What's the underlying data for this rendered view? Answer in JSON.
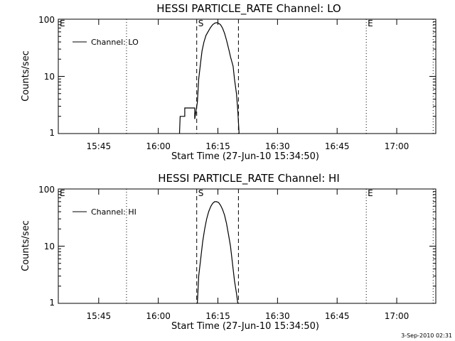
{
  "footer": {
    "timestamp": "3-Sep-2010 02:31"
  },
  "chart_data": [
    {
      "type": "line",
      "title": "HESSI PARTICLE_RATE Channel: LO",
      "xlabel": "Start Time (27-Jun-10 15:34:50)",
      "ylabel": "Counts/sec",
      "y_scale": "log",
      "ylim": [
        1,
        100
      ],
      "xlim": [
        "15:34:50",
        "17:09:50"
      ],
      "x_ticks": [
        "15:45",
        "16:00",
        "16:15",
        "16:30",
        "16:45",
        "17:00"
      ],
      "y_ticks": [
        "1",
        "10",
        "100"
      ],
      "legend": {
        "position": "top-left",
        "entries": [
          "Channel: LO"
        ]
      },
      "markers": [
        {
          "label": "E",
          "time": "15:34:50",
          "style": "none"
        },
        {
          "label": "",
          "time": "15:52:00",
          "style": "dotted"
        },
        {
          "label": "S",
          "time": "16:09:40",
          "style": "dashed"
        },
        {
          "label": "",
          "time": "16:20:10",
          "style": "dashed"
        },
        {
          "label": "E",
          "time": "16:52:20",
          "style": "dotted"
        },
        {
          "label": "",
          "time": "17:09:10",
          "style": "dotted"
        }
      ],
      "series": [
        {
          "name": "Channel: LO",
          "x": [
            "16:05:20",
            "16:05:30",
            "16:06:40",
            "16:06:40",
            "16:07:50",
            "16:07:50",
            "16:09:10",
            "16:09:10",
            "16:09:50",
            "16:10:10",
            "16:10:40",
            "16:11:00",
            "16:11:30",
            "16:12:00",
            "16:12:40",
            "16:13:10",
            "16:13:40",
            "16:14:10",
            "16:14:40",
            "16:15:10",
            "16:15:40",
            "16:16:10",
            "16:16:40",
            "16:17:10",
            "16:17:50",
            "16:18:10",
            "16:18:50",
            "16:19:10",
            "16:19:40",
            "16:20:00",
            "16:20:20"
          ],
          "y": [
            1,
            2,
            2,
            2.8,
            2.8,
            2.8,
            2.8,
            1.8,
            3.5,
            9,
            18,
            28,
            40,
            52,
            63,
            72,
            80,
            85,
            87,
            85,
            80,
            70,
            57,
            43,
            28,
            22,
            15,
            9,
            5,
            2.5,
            1
          ]
        }
      ]
    },
    {
      "type": "line",
      "title": "HESSI PARTICLE_RATE Channel: HI",
      "xlabel": "Start Time (27-Jun-10 15:34:50)",
      "ylabel": "Counts/sec",
      "y_scale": "log",
      "ylim": [
        1,
        100
      ],
      "xlim": [
        "15:34:50",
        "17:09:50"
      ],
      "x_ticks": [
        "15:45",
        "16:00",
        "16:15",
        "16:30",
        "16:45",
        "17:00"
      ],
      "y_ticks": [
        "1",
        "10",
        "100"
      ],
      "legend": {
        "position": "top-left",
        "entries": [
          "Channel: HI"
        ]
      },
      "markers": [
        {
          "label": "E",
          "time": "15:34:50",
          "style": "none"
        },
        {
          "label": "",
          "time": "15:52:00",
          "style": "dotted"
        },
        {
          "label": "S",
          "time": "16:09:40",
          "style": "dashed"
        },
        {
          "label": "",
          "time": "16:20:10",
          "style": "dashed"
        },
        {
          "label": "E",
          "time": "16:52:20",
          "style": "dotted"
        },
        {
          "label": "",
          "time": "17:09:10",
          "style": "dotted"
        }
      ],
      "series": [
        {
          "name": "Channel: HI",
          "x": [
            "16:09:50",
            "16:10:10",
            "16:10:40",
            "16:11:10",
            "16:11:40",
            "16:12:10",
            "16:12:40",
            "16:13:10",
            "16:13:40",
            "16:14:10",
            "16:14:40",
            "16:15:10",
            "16:15:40",
            "16:16:10",
            "16:16:40",
            "16:17:10",
            "16:17:40",
            "16:18:10",
            "16:18:40",
            "16:19:10",
            "16:19:40",
            "16:20:00"
          ],
          "y": [
            1,
            3,
            6,
            12,
            20,
            30,
            40,
            49,
            56,
            60,
            60,
            58,
            52,
            44,
            35,
            25,
            16,
            10,
            5,
            2.5,
            1.5,
            1
          ]
        }
      ]
    }
  ]
}
